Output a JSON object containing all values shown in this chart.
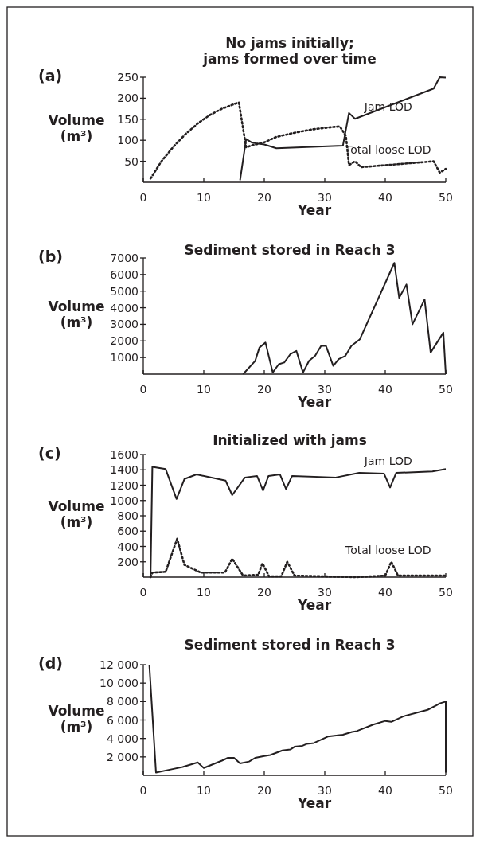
{
  "chart_data": [
    {
      "type": "line",
      "title": "No jams initially; jams formed over time",
      "xlabel": "Year",
      "ylabel": "Volume (m³)",
      "annotations": [
        "(a)"
      ],
      "xlim": [
        0,
        50
      ],
      "xticks": [
        0,
        10,
        20,
        30,
        40,
        50
      ],
      "ylim": [
        0,
        250
      ],
      "yticks": [
        50,
        100,
        150,
        200,
        250
      ],
      "grid": false,
      "marker": "none",
      "series": [
        {
          "name": "Jam LOD",
          "color": "#231f20",
          "line_style": "solid",
          "x": [
            16,
            17,
            18,
            20,
            22,
            33,
            34,
            35,
            48,
            49,
            50
          ],
          "values": [
            5,
            103,
            94,
            90,
            81,
            87,
            165,
            151,
            223,
            250,
            249
          ]
        },
        {
          "name": "Total loose LOD",
          "color": "#231f20",
          "line_style": "dotted",
          "x": [
            1.2,
            3,
            5,
            7,
            9,
            11,
            13,
            15,
            15.8,
            17,
            18,
            20,
            22,
            25,
            28,
            31,
            32.5,
            33.5,
            34,
            35,
            36,
            48,
            49,
            50
          ],
          "values": [
            9,
            50,
            85,
            115,
            140,
            160,
            175,
            186,
            190,
            83,
            88,
            95,
            108,
            118,
            126,
            131,
            133,
            110,
            41,
            50,
            36,
            50,
            23,
            32
          ]
        }
      ]
    },
    {
      "type": "line",
      "title": "Sediment stored in Reach 3",
      "xlabel": "Year",
      "ylabel": "Volume (m³)",
      "annotations": [
        "(b)"
      ],
      "xlim": [
        0,
        50
      ],
      "xticks": [
        0,
        10,
        20,
        30,
        40,
        50
      ],
      "ylim": [
        0,
        7000
      ],
      "yticks": [
        1000,
        2000,
        3000,
        4000,
        5000,
        6000,
        7000
      ],
      "grid": false,
      "marker": "none",
      "series": [
        {
          "color": "#231f20",
          "line_style": "solid",
          "x": [
            16.5,
            18.5,
            19.2,
            20.2,
            21.4,
            22.4,
            23.3,
            24.3,
            25.3,
            26.4,
            27.4,
            28.4,
            29.4,
            30.2,
            31.4,
            32.3,
            33.4,
            34.4,
            35.8,
            41.5,
            42.3,
            43.5,
            44.5,
            46.5,
            47.5,
            49.6,
            50
          ],
          "values": [
            0,
            800,
            1600,
            1900,
            100,
            600,
            700,
            1200,
            1400,
            100,
            800,
            1100,
            1700,
            1700,
            500,
            900,
            1100,
            1700,
            2100,
            6700,
            4600,
            5400,
            3000,
            4500,
            1300,
            2500,
            0
          ]
        }
      ]
    },
    {
      "type": "line",
      "title": "Initialized with jams",
      "xlabel": "Year",
      "ylabel": "Volume (m³)",
      "annotations": [
        "(c)"
      ],
      "xlim": [
        0,
        50
      ],
      "xticks": [
        0,
        10,
        20,
        30,
        40,
        50
      ],
      "ylim": [
        0,
        1600
      ],
      "yticks": [
        200,
        400,
        600,
        800,
        1000,
        1200,
        1400,
        1600
      ],
      "grid": false,
      "marker": "none",
      "series": [
        {
          "name": "Jam LOD",
          "color": "#231f20",
          "line_style": "solid",
          "x": [
            1.2,
            1.5,
            3.7,
            5.5,
            6.8,
            8.8,
            13.6,
            14.7,
            16.8,
            18.8,
            19.8,
            20.7,
            22.6,
            23.6,
            24.6,
            31.8,
            35.7,
            39.8,
            40.8,
            41.8,
            47.8,
            50
          ],
          "values": [
            0,
            1440,
            1410,
            1020,
            1280,
            1340,
            1260,
            1070,
            1300,
            1320,
            1130,
            1320,
            1340,
            1150,
            1320,
            1300,
            1360,
            1350,
            1170,
            1360,
            1380,
            1410
          ]
        },
        {
          "name": "Total loose LOD",
          "color": "#231f20",
          "line_style": "dotted",
          "x": [
            1.2,
            1.5,
            3.7,
            5.6,
            6.8,
            9.5,
            13.5,
            14.7,
            16.5,
            19,
            19.7,
            20.8,
            22.8,
            23.8,
            25,
            35,
            40,
            41,
            42.1,
            50
          ],
          "values": [
            0,
            60,
            70,
            500,
            160,
            60,
            60,
            240,
            20,
            30,
            180,
            10,
            10,
            200,
            20,
            0,
            20,
            200,
            20,
            20
          ]
        }
      ]
    },
    {
      "type": "line",
      "title": "Sediment stored in Reach 3",
      "xlabel": "Year",
      "ylabel": "Volume (m³)",
      "annotations": [
        "(d)"
      ],
      "xlim": [
        0,
        50
      ],
      "xticks": [
        0,
        10,
        20,
        30,
        40,
        50
      ],
      "ylim": [
        0,
        12000
      ],
      "yticks": [
        {
          "value": 2000,
          "label": "2 000"
        },
        {
          "value": 4000,
          "label": "4 000"
        },
        {
          "value": 6000,
          "label": "6 000"
        },
        {
          "value": 8000,
          "label": "8 000"
        },
        {
          "value": 10000,
          "label": "10 000"
        },
        {
          "value": 12000,
          "label": "12 000"
        }
      ],
      "grid": false,
      "marker": "none",
      "series": [
        {
          "color": "#231f20",
          "line_style": "solid",
          "x": [
            1,
            2.1,
            5,
            6.5,
            9,
            10,
            13,
            14,
            15,
            16,
            17.5,
            18.5,
            20,
            21,
            23,
            24.3,
            25,
            26.3,
            27,
            28.2,
            30.5,
            33,
            34.5,
            35.3,
            38,
            40,
            41,
            43,
            47,
            48.5,
            49,
            50,
            50
          ],
          "values": [
            12000,
            300,
            700,
            900,
            1400,
            800,
            1600,
            1900,
            1900,
            1300,
            1500,
            1900,
            2100,
            2200,
            2700,
            2800,
            3100,
            3200,
            3400,
            3500,
            4200,
            4400,
            4700,
            4800,
            5500,
            5900,
            5800,
            6400,
            7100,
            7600,
            7800,
            8000,
            300
          ]
        }
      ]
    }
  ]
}
